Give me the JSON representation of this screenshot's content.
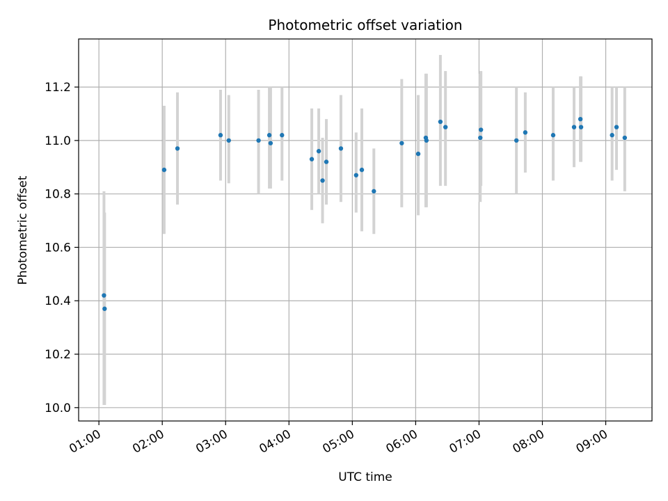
{
  "chart_data": {
    "type": "scatter",
    "title": "Photometric offset variation",
    "xlabel": "UTC time",
    "ylabel": "Photometric offset",
    "x_unit": "hours UTC",
    "xlim": [
      0.68,
      9.73
    ],
    "ylim": [
      9.95,
      11.38
    ],
    "x_ticks": [
      {
        "value": 1,
        "label": "01:00"
      },
      {
        "value": 2,
        "label": "02:00"
      },
      {
        "value": 3,
        "label": "03:00"
      },
      {
        "value": 4,
        "label": "04:00"
      },
      {
        "value": 5,
        "label": "05:00"
      },
      {
        "value": 6,
        "label": "06:00"
      },
      {
        "value": 7,
        "label": "07:00"
      },
      {
        "value": 8,
        "label": "08:00"
      },
      {
        "value": 9,
        "label": "09:00"
      }
    ],
    "y_ticks": [
      {
        "value": 10.0,
        "label": "10.0"
      },
      {
        "value": 10.2,
        "label": "10.2"
      },
      {
        "value": 10.4,
        "label": "10.4"
      },
      {
        "value": 10.6,
        "label": "10.6"
      },
      {
        "value": 10.8,
        "label": "10.8"
      },
      {
        "value": 11.0,
        "label": "11.0"
      },
      {
        "value": 11.2,
        "label": "11.2"
      }
    ],
    "grid": true,
    "point_color": "#1f77b4",
    "errorbar_color": "#d3d3d3",
    "points": [
      {
        "x": 1.08,
        "y": 10.42,
        "ylo": 10.01,
        "yhi": 10.81
      },
      {
        "x": 1.09,
        "y": 10.37,
        "ylo": 10.01,
        "yhi": 10.73
      },
      {
        "x": 2.03,
        "y": 10.89,
        "ylo": 10.65,
        "yhi": 11.13
      },
      {
        "x": 2.24,
        "y": 10.97,
        "ylo": 10.76,
        "yhi": 11.18
      },
      {
        "x": 2.92,
        "y": 11.02,
        "ylo": 10.85,
        "yhi": 11.19
      },
      {
        "x": 3.05,
        "y": 11.0,
        "ylo": 10.84,
        "yhi": 11.17
      },
      {
        "x": 3.52,
        "y": 11.0,
        "ylo": 10.8,
        "yhi": 11.19
      },
      {
        "x": 3.69,
        "y": 11.02,
        "ylo": 10.82,
        "yhi": 11.2
      },
      {
        "x": 3.71,
        "y": 10.99,
        "ylo": 10.82,
        "yhi": 11.2
      },
      {
        "x": 3.89,
        "y": 11.02,
        "ylo": 10.85,
        "yhi": 11.2
      },
      {
        "x": 4.36,
        "y": 10.93,
        "ylo": 10.74,
        "yhi": 11.12
      },
      {
        "x": 4.47,
        "y": 10.96,
        "ylo": 10.8,
        "yhi": 11.12
      },
      {
        "x": 4.53,
        "y": 10.85,
        "ylo": 10.69,
        "yhi": 11.01
      },
      {
        "x": 4.59,
        "y": 10.92,
        "ylo": 10.76,
        "yhi": 11.08
      },
      {
        "x": 4.82,
        "y": 10.97,
        "ylo": 10.77,
        "yhi": 11.17
      },
      {
        "x": 5.06,
        "y": 10.87,
        "ylo": 10.73,
        "yhi": 11.03
      },
      {
        "x": 5.15,
        "y": 10.89,
        "ylo": 10.66,
        "yhi": 11.12
      },
      {
        "x": 5.34,
        "y": 10.81,
        "ylo": 10.65,
        "yhi": 10.97
      },
      {
        "x": 5.78,
        "y": 10.99,
        "ylo": 10.75,
        "yhi": 11.23
      },
      {
        "x": 6.04,
        "y": 10.95,
        "ylo": 10.72,
        "yhi": 11.17
      },
      {
        "x": 6.16,
        "y": 11.01,
        "ylo": 10.75,
        "yhi": 11.25
      },
      {
        "x": 6.17,
        "y": 11.0,
        "ylo": 10.75,
        "yhi": 11.25
      },
      {
        "x": 6.39,
        "y": 11.07,
        "ylo": 10.83,
        "yhi": 11.32
      },
      {
        "x": 6.47,
        "y": 11.05,
        "ylo": 10.83,
        "yhi": 11.26
      },
      {
        "x": 7.02,
        "y": 11.01,
        "ylo": 10.77,
        "yhi": 11.25
      },
      {
        "x": 7.03,
        "y": 11.04,
        "ylo": 10.83,
        "yhi": 11.26
      },
      {
        "x": 7.59,
        "y": 11.0,
        "ylo": 10.8,
        "yhi": 11.2
      },
      {
        "x": 7.73,
        "y": 11.03,
        "ylo": 10.88,
        "yhi": 11.18
      },
      {
        "x": 8.17,
        "y": 11.02,
        "ylo": 10.85,
        "yhi": 11.2
      },
      {
        "x": 8.5,
        "y": 11.05,
        "ylo": 10.9,
        "yhi": 11.2
      },
      {
        "x": 8.6,
        "y": 11.08,
        "ylo": 10.92,
        "yhi": 11.24
      },
      {
        "x": 8.61,
        "y": 11.05,
        "ylo": 10.92,
        "yhi": 11.24
      },
      {
        "x": 9.1,
        "y": 11.02,
        "ylo": 10.85,
        "yhi": 11.2
      },
      {
        "x": 9.17,
        "y": 11.05,
        "ylo": 10.89,
        "yhi": 11.2
      },
      {
        "x": 9.3,
        "y": 11.01,
        "ylo": 10.81,
        "yhi": 11.2
      }
    ]
  }
}
